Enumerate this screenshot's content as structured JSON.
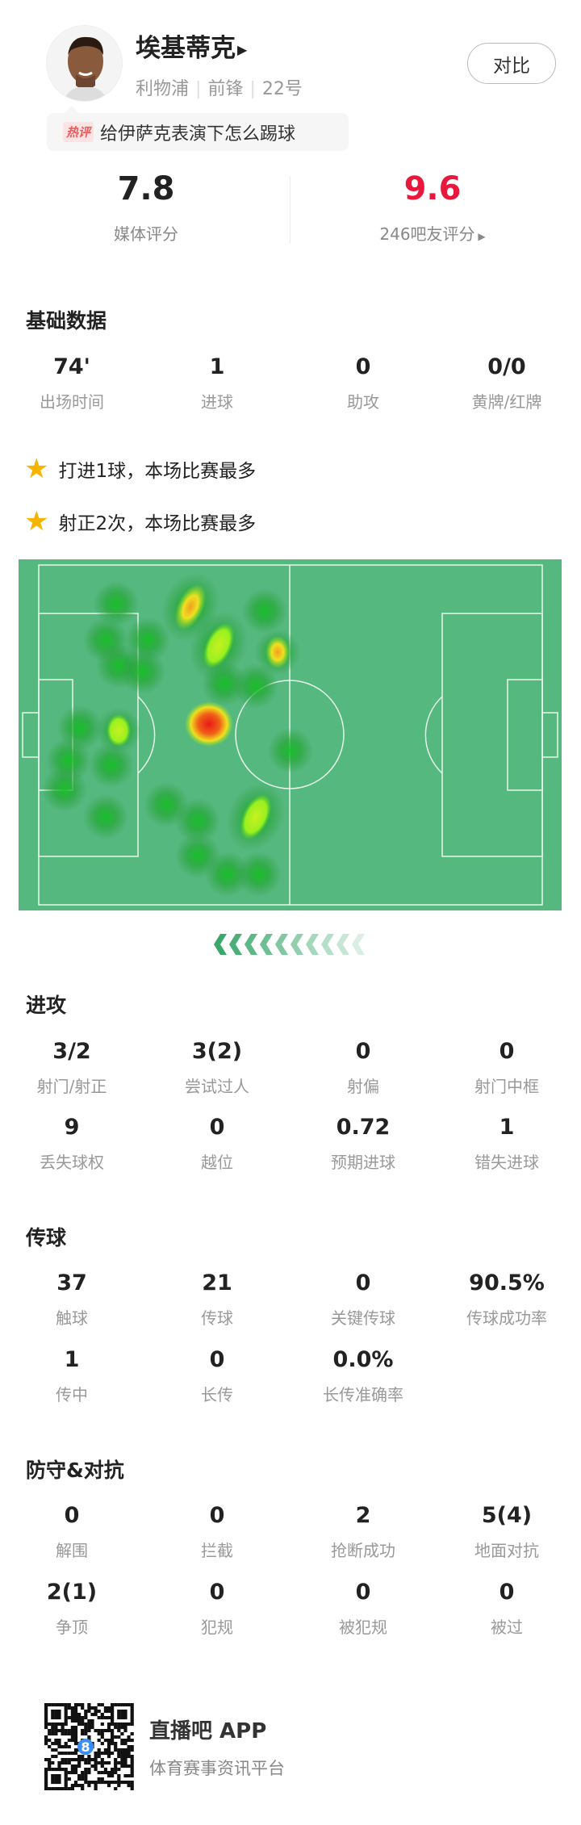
{
  "player": {
    "name": "埃基蒂克",
    "team": "利物浦",
    "position": "前锋",
    "number": "22号",
    "compare_label": "对比"
  },
  "hot_comment": {
    "tag": "热评",
    "text": "给伊萨克表演下怎么踢球"
  },
  "ratings": {
    "media": {
      "value": "7.8",
      "label": "媒体评分"
    },
    "fans": {
      "value": "9.6",
      "label": "246吧友评分"
    }
  },
  "colors": {
    "fan_rating": "#e8173b",
    "pitch": "#55b87e",
    "star": "#f5b400"
  },
  "basic": {
    "title": "基础数据",
    "stats": [
      {
        "value": "74'",
        "label": "出场时间"
      },
      {
        "value": "1",
        "label": "进球"
      },
      {
        "value": "0",
        "label": "助攻"
      },
      {
        "value": "0/0",
        "label": "黄牌/红牌"
      }
    ]
  },
  "highlights": [
    "打进1球，本场比赛最多",
    "射正2次，本场比赛最多"
  ],
  "attack": {
    "title": "进攻",
    "stats": [
      {
        "value": "3/2",
        "label": "射门/射正"
      },
      {
        "value": "3(2)",
        "label": "尝试过人"
      },
      {
        "value": "0",
        "label": "射偏"
      },
      {
        "value": "0",
        "label": "射门中框"
      },
      {
        "value": "9",
        "label": "丢失球权"
      },
      {
        "value": "0",
        "label": "越位"
      },
      {
        "value": "0.72",
        "label": "预期进球"
      },
      {
        "value": "1",
        "label": "错失进球"
      }
    ]
  },
  "passing": {
    "title": "传球",
    "stats": [
      {
        "value": "37",
        "label": "触球"
      },
      {
        "value": "21",
        "label": "传球"
      },
      {
        "value": "0",
        "label": "关键传球"
      },
      {
        "value": "90.5%",
        "label": "传球成功率"
      },
      {
        "value": "1",
        "label": "传中"
      },
      {
        "value": "0",
        "label": "长传"
      },
      {
        "value": "0.0%",
        "label": "长传准确率"
      }
    ]
  },
  "defense": {
    "title": "防守&对抗",
    "stats": [
      {
        "value": "0",
        "label": "解围"
      },
      {
        "value": "0",
        "label": "拦截"
      },
      {
        "value": "2",
        "label": "抢断成功"
      },
      {
        "value": "5(4)",
        "label": "地面对抗"
      },
      {
        "value": "2(1)",
        "label": "争顶"
      },
      {
        "value": "0",
        "label": "犯规"
      },
      {
        "value": "0",
        "label": "被犯规"
      },
      {
        "value": "0",
        "label": "被过"
      }
    ]
  },
  "footer": {
    "app_name": "直播吧 APP",
    "slogan": "体育赛事资讯平台",
    "qr_badge": "8"
  }
}
